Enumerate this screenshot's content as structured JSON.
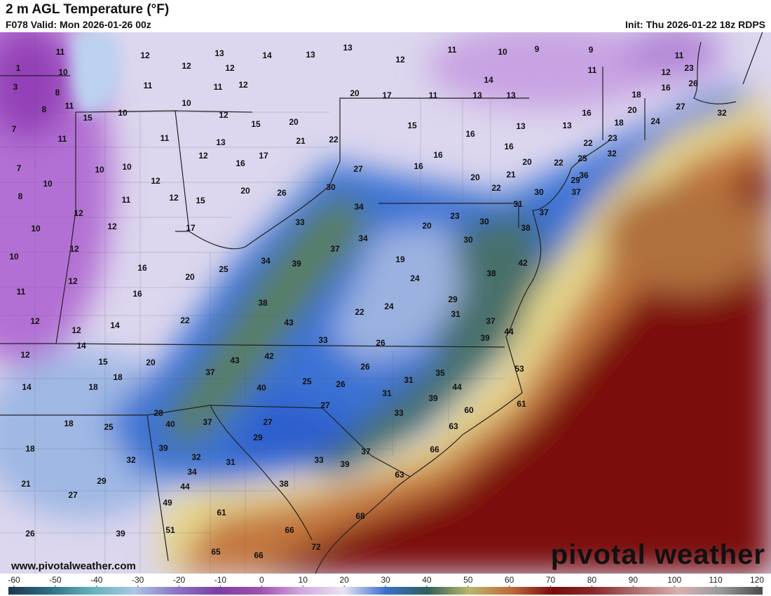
{
  "header": {
    "title": "2 m AGL Temperature (°F)",
    "valid": "F078 Valid: Mon 2026-01-26 00z",
    "init": "Init: Thu 2026-01-22 18z RDPS"
  },
  "website": "www.pivotalweather.com",
  "logo": "pivotal weather",
  "temperatures": [
    1,
    3,
    8,
    7,
    7,
    10,
    8,
    10,
    10,
    11,
    12,
    12,
    14,
    11,
    10,
    8,
    11,
    15,
    10,
    11,
    10,
    10,
    12,
    11,
    12,
    12,
    12,
    12,
    12,
    14,
    14,
    15,
    18,
    18,
    20,
    18,
    25,
    18,
    32,
    29,
    21,
    27,
    26,
    39,
    12,
    12,
    13,
    12,
    14,
    13,
    13,
    11,
    10,
    11,
    12,
    11,
    12,
    12,
    15,
    17,
    16,
    16,
    20,
    12,
    15,
    13,
    16,
    17,
    20,
    26,
    20,
    21,
    22,
    27,
    30,
    34,
    33,
    37,
    34,
    34,
    39,
    25,
    22,
    38,
    43,
    33,
    43,
    42,
    37,
    40,
    25,
    26,
    28,
    40,
    37,
    39,
    32,
    34,
    31,
    44,
    49,
    51,
    61,
    65,
    66,
    38,
    66,
    72,
    27,
    29,
    27,
    33,
    39,
    37,
    63,
    68,
    20,
    17,
    12,
    11,
    10,
    9,
    9,
    11,
    11,
    13,
    14,
    13,
    15,
    16,
    16,
    16,
    20,
    22,
    21,
    13,
    16,
    20,
    13,
    16,
    22,
    29,
    30,
    23,
    20,
    30,
    30,
    31,
    37,
    38,
    37,
    36,
    25,
    22,
    32,
    23,
    18,
    20,
    18,
    24,
    12,
    16,
    11,
    23,
    26,
    27,
    32,
    19,
    24,
    24,
    22,
    29,
    31,
    38,
    42,
    37,
    44,
    39,
    26,
    26,
    31,
    35,
    31,
    44,
    39,
    33,
    60,
    61,
    53,
    63,
    66
  ],
  "colorbar": {
    "ticks": [
      -60,
      -50,
      -40,
      -30,
      -20,
      -10,
      0,
      10,
      20,
      30,
      40,
      50,
      60,
      70,
      80,
      90,
      100,
      110,
      120
    ],
    "colors": [
      "#1e3550",
      "#2f6f86",
      "#63b3bb",
      "#aac6e4",
      "#8d74c9",
      "#7b3fa6",
      "#a04fb0",
      "#d3a8e0",
      "#e8e4f4",
      "#3a6fd0",
      "#2f5f5a",
      "#b8b86a",
      "#c06a3a",
      "#7a0a0a",
      "#8a2a2a",
      "#b07070",
      "#d9b0b0",
      "#9a9a9a",
      "#4a4a4a"
    ]
  }
}
